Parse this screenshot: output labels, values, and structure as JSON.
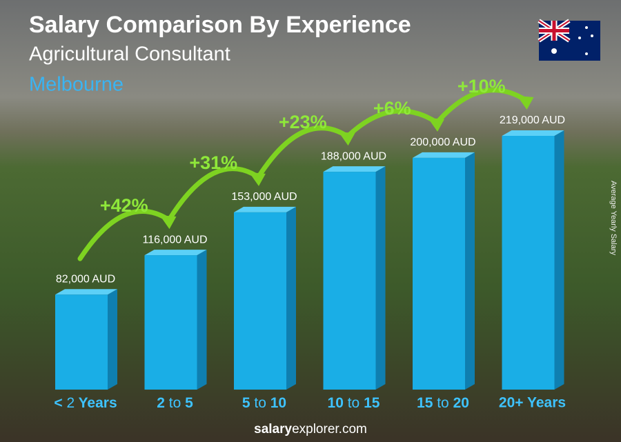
{
  "chart_data": {
    "type": "bar",
    "title": "Salary Comparison By Experience",
    "subtitle": "Agricultural Consultant",
    "location": "Melbourne",
    "y_axis_label": "Average Yearly Salary",
    "categories": [
      "< 2 Years",
      "2 to 5",
      "5 to 10",
      "10 to 15",
      "15 to 20",
      "20+ Years"
    ],
    "values": [
      82000,
      116000,
      153000,
      188000,
      200000,
      219000
    ],
    "value_labels": [
      "82,000 AUD",
      "116,000 AUD",
      "153,000 AUD",
      "188,000 AUD",
      "200,000 AUD",
      "219,000 AUD"
    ],
    "changes": [
      "+42%",
      "+31%",
      "+23%",
      "+6%",
      "+10%"
    ],
    "color": "#1aaee6",
    "footer": [
      "salary",
      "explorer.com"
    ]
  }
}
